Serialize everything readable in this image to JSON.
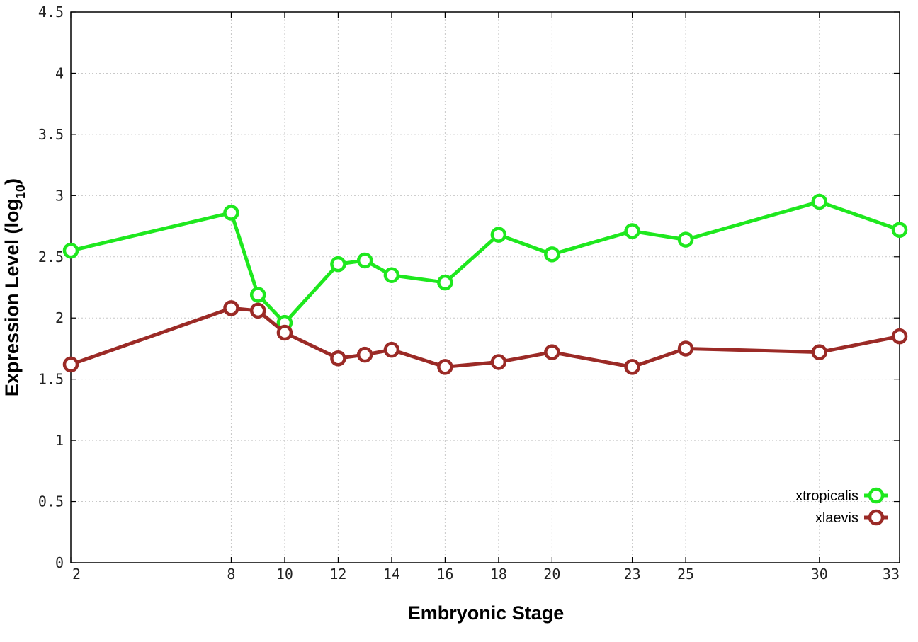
{
  "chart_data": {
    "type": "line",
    "xlabel": "Embryonic Stage",
    "ylabel": "Expression Level (log",
    "ylabel_sub": "10",
    "ylabel_close": ")",
    "xlim": [
      2,
      33
    ],
    "ylim": [
      0,
      4.5
    ],
    "x_ticks": [
      2,
      8,
      10,
      12,
      14,
      16,
      18,
      20,
      23,
      25,
      30,
      33
    ],
    "y_ticks": [
      0,
      0.5,
      1,
      1.5,
      2,
      2.5,
      3,
      3.5,
      4,
      4.5
    ],
    "y_tick_labels": [
      "0",
      "0.5",
      "1",
      "1.5",
      "2",
      "2.5",
      "3",
      "3.5",
      "4",
      "4.5"
    ],
    "grid": true,
    "legend_position": "bottom-right",
    "series": [
      {
        "name": "xtropicalis",
        "color": "#1ee81e",
        "x": [
          2,
          8,
          9,
          10,
          12,
          13,
          14,
          16,
          18,
          20,
          23,
          25,
          30,
          33
        ],
        "values": [
          2.55,
          2.86,
          2.19,
          1.96,
          2.44,
          2.47,
          2.35,
          2.29,
          2.68,
          2.52,
          2.71,
          2.64,
          2.95,
          2.72
        ]
      },
      {
        "name": "xlaevis",
        "color": "#9b2a26",
        "x": [
          2,
          8,
          9,
          10,
          12,
          13,
          14,
          16,
          18,
          20,
          23,
          25,
          30,
          33
        ],
        "values": [
          1.62,
          2.08,
          2.06,
          1.88,
          1.67,
          1.7,
          1.74,
          1.6,
          1.64,
          1.72,
          1.6,
          1.75,
          1.72,
          1.85
        ]
      }
    ]
  }
}
